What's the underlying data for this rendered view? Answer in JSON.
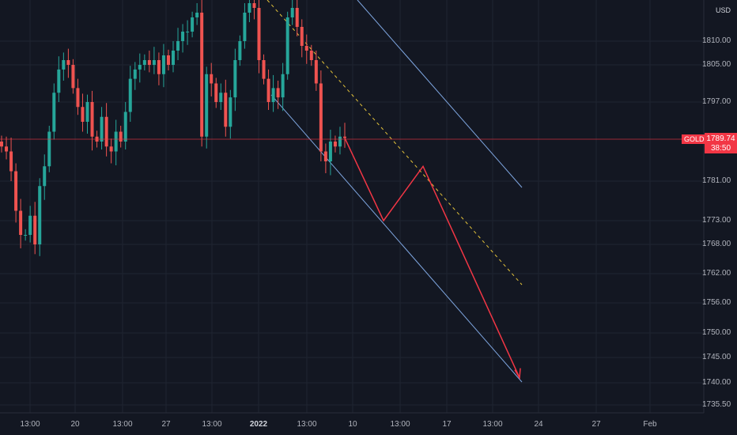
{
  "currency": "USD",
  "symbol": "GOLD",
  "last_price": "1789.74",
  "countdown": "38:50",
  "colors": {
    "background": "#131722",
    "grid": "#1f2431",
    "up": "#26a69a",
    "down": "#ef5350",
    "channel": "#7ea6e0",
    "midline": "#e3c23a",
    "projection": "#f23645",
    "price_line": "#f23645"
  },
  "chart_data": {
    "type": "candlestick",
    "price_axis_ticks": [
      "1810.00",
      "1805.00",
      "1797.00",
      "1781.00",
      "1773.00",
      "1768.00",
      "1762.00",
      "1756.00",
      "1750.00",
      "1745.00",
      "1740.00",
      "1735.50"
    ],
    "time_axis_labels": [
      {
        "label": "13:00",
        "bold": false
      },
      {
        "label": "20",
        "bold": false
      },
      {
        "label": "13:00",
        "bold": false
      },
      {
        "label": "27",
        "bold": false
      },
      {
        "label": "13:00",
        "bold": false
      },
      {
        "label": "2022",
        "bold": true
      },
      {
        "label": "13:00",
        "bold": false
      },
      {
        "label": "10",
        "bold": false
      },
      {
        "label": "13:00",
        "bold": false
      },
      {
        "label": "17",
        "bold": false
      },
      {
        "label": "13:00",
        "bold": false
      },
      {
        "label": "24",
        "bold": false
      },
      {
        "label": "27",
        "bold": false
      },
      {
        "label": "Feb",
        "bold": false
      }
    ],
    "last_price": 1789.74,
    "series_close": [
      1788,
      1787,
      1783,
      1775,
      1770,
      1770,
      1774,
      1768,
      1780,
      1784,
      1791,
      1799,
      1804,
      1806,
      1805,
      1800,
      1796,
      1793,
      1797,
      1790,
      1789,
      1794,
      1788,
      1787,
      1791,
      1789,
      1795,
      1802,
      1804,
      1805,
      1806,
      1805,
      1806,
      1803,
      1807,
      1805,
      1808,
      1810,
      1812,
      1812,
      1815,
      1816,
      1790,
      1803,
      1801,
      1797,
      1799,
      1792,
      1798,
      1806,
      1810,
      1816,
      1818,
      1817,
      1806,
      1802,
      1797,
      1800,
      1798,
      1803,
      1815,
      1817,
      1813,
      1809,
      1808,
      1806,
      1801,
      1787,
      1785,
      1789,
      1788,
      1790,
      1789.74
    ],
    "projection_path_prices": [
      1789.74,
      1773,
      1784,
      1741
    ],
    "channel_note": "descending channel with dashed midline"
  }
}
